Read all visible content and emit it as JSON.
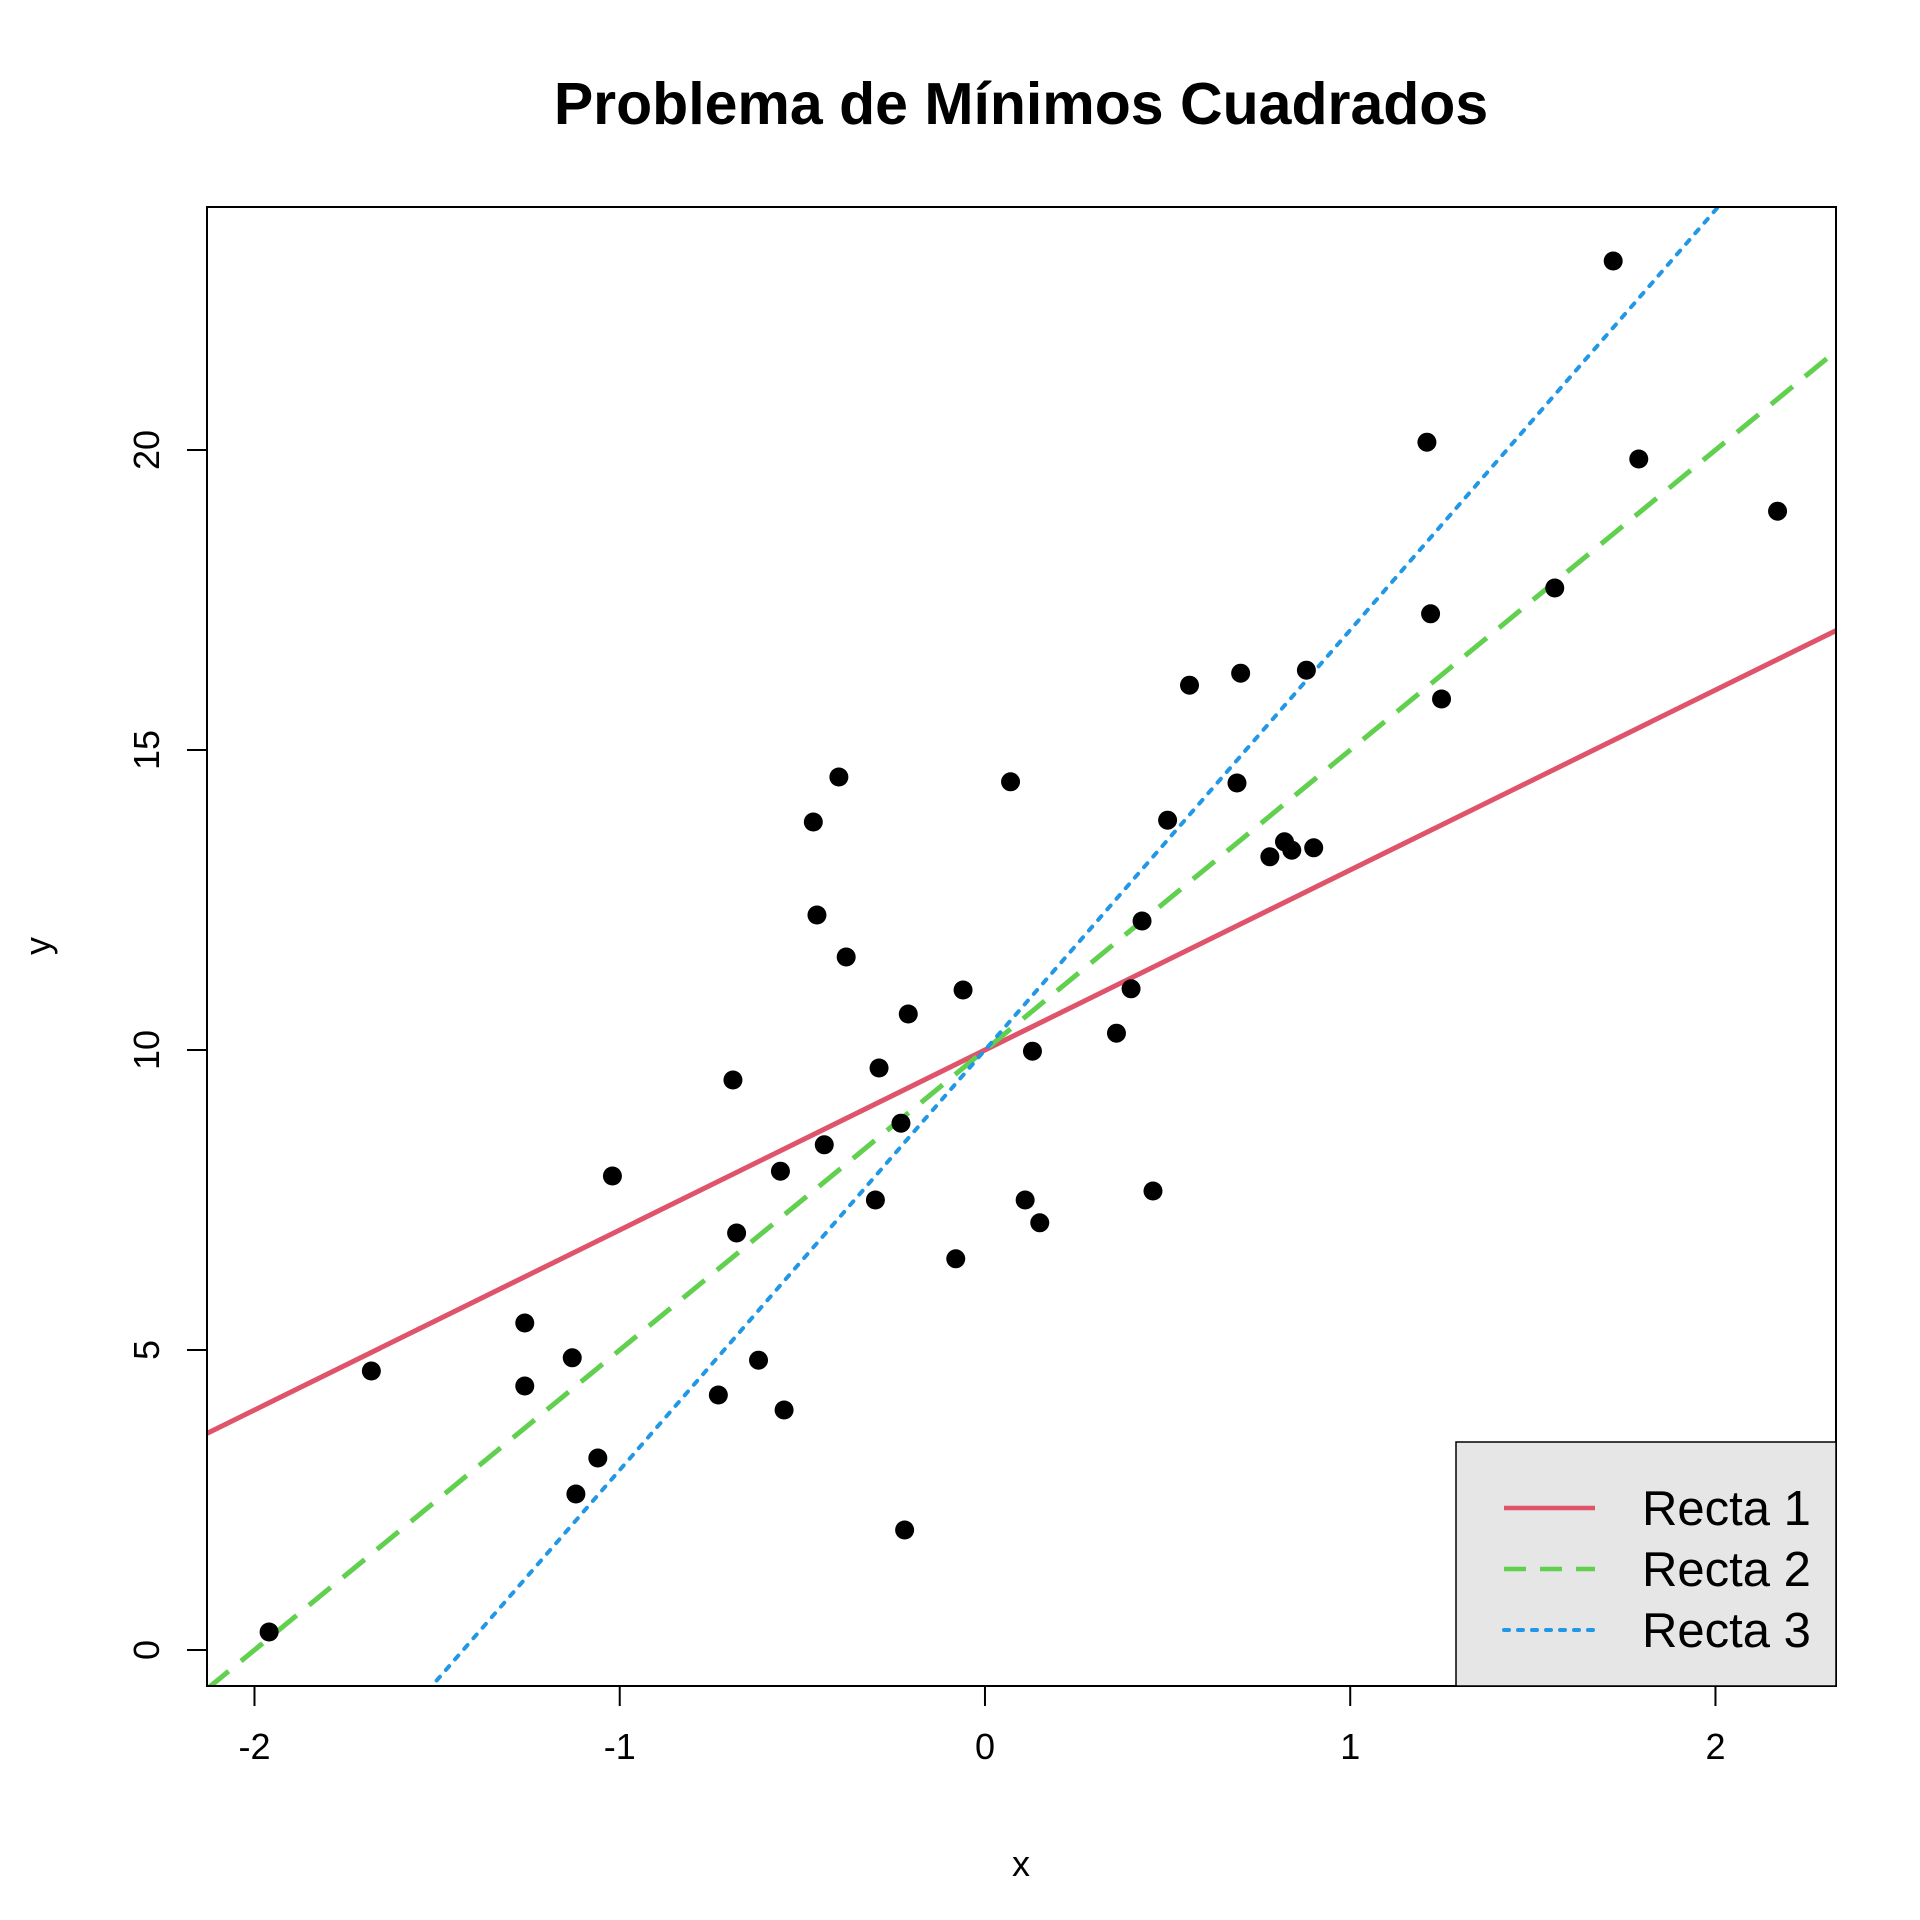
{
  "chart_data": {
    "type": "scatter",
    "title": "Problema de Mínimos Cuadrados",
    "xlabel": "x",
    "ylabel": "y",
    "xlim": [
      -2.13,
      2.33
    ],
    "ylim": [
      -0.6,
      24.05
    ],
    "x_ticks": [
      -2,
      -1,
      0,
      1,
      2
    ],
    "y_ticks": [
      0,
      5,
      10,
      15,
      20
    ],
    "grid": false,
    "points": [
      {
        "x": -1.96,
        "y": 0.3
      },
      {
        "x": -1.68,
        "y": 4.65
      },
      {
        "x": -1.26,
        "y": 5.45
      },
      {
        "x": -1.26,
        "y": 4.4
      },
      {
        "x": -1.13,
        "y": 4.87
      },
      {
        "x": -1.12,
        "y": 2.6
      },
      {
        "x": -1.06,
        "y": 3.2
      },
      {
        "x": -1.02,
        "y": 7.9
      },
      {
        "x": -0.73,
        "y": 4.25
      },
      {
        "x": -0.69,
        "y": 9.5
      },
      {
        "x": -0.68,
        "y": 6.95
      },
      {
        "x": -0.62,
        "y": 4.83
      },
      {
        "x": -0.56,
        "y": 7.98
      },
      {
        "x": -0.55,
        "y": 4.0
      },
      {
        "x": -0.47,
        "y": 13.8
      },
      {
        "x": -0.46,
        "y": 12.25
      },
      {
        "x": -0.44,
        "y": 8.42
      },
      {
        "x": -0.4,
        "y": 14.55
      },
      {
        "x": -0.38,
        "y": 11.55
      },
      {
        "x": -0.3,
        "y": 7.5
      },
      {
        "x": -0.29,
        "y": 9.7
      },
      {
        "x": -0.23,
        "y": 8.78
      },
      {
        "x": -0.22,
        "y": 2.0
      },
      {
        "x": -0.21,
        "y": 10.6
      },
      {
        "x": -0.08,
        "y": 6.52
      },
      {
        "x": -0.06,
        "y": 11.0
      },
      {
        "x": 0.07,
        "y": 14.47
      },
      {
        "x": 0.11,
        "y": 7.5
      },
      {
        "x": 0.13,
        "y": 9.98
      },
      {
        "x": 0.15,
        "y": 7.12
      },
      {
        "x": 0.36,
        "y": 10.28
      },
      {
        "x": 0.4,
        "y": 11.02
      },
      {
        "x": 0.43,
        "y": 12.15
      },
      {
        "x": 0.46,
        "y": 7.65
      },
      {
        "x": 0.5,
        "y": 13.83
      },
      {
        "x": 0.56,
        "y": 16.08
      },
      {
        "x": 0.69,
        "y": 14.45
      },
      {
        "x": 0.7,
        "y": 16.28
      },
      {
        "x": 0.78,
        "y": 13.22
      },
      {
        "x": 0.82,
        "y": 13.47
      },
      {
        "x": 0.84,
        "y": 13.33
      },
      {
        "x": 0.88,
        "y": 16.33
      },
      {
        "x": 0.9,
        "y": 13.37
      },
      {
        "x": 1.21,
        "y": 20.13
      },
      {
        "x": 1.22,
        "y": 17.27
      },
      {
        "x": 1.25,
        "y": 15.85
      },
      {
        "x": 1.56,
        "y": 17.7
      },
      {
        "x": 1.72,
        "y": 23.15
      },
      {
        "x": 1.79,
        "y": 19.85
      },
      {
        "x": 2.17,
        "y": 18.98
      }
    ],
    "series": [
      {
        "name": "Recta 1",
        "intercept": 10.0,
        "slope": 3.0,
        "color": "#df536b",
        "style": "solid"
      },
      {
        "name": "Recta 2",
        "intercept": 10.0,
        "slope": 5.0,
        "color": "#61d04f",
        "style": "dashed"
      },
      {
        "name": "Recta 3",
        "intercept": 10.0,
        "slope": 7.0,
        "color": "#2297e6",
        "style": "dotted"
      }
    ],
    "legend_position": "bottom-right",
    "legend_background": "#e6e6e6",
    "point_color": "#000000"
  }
}
